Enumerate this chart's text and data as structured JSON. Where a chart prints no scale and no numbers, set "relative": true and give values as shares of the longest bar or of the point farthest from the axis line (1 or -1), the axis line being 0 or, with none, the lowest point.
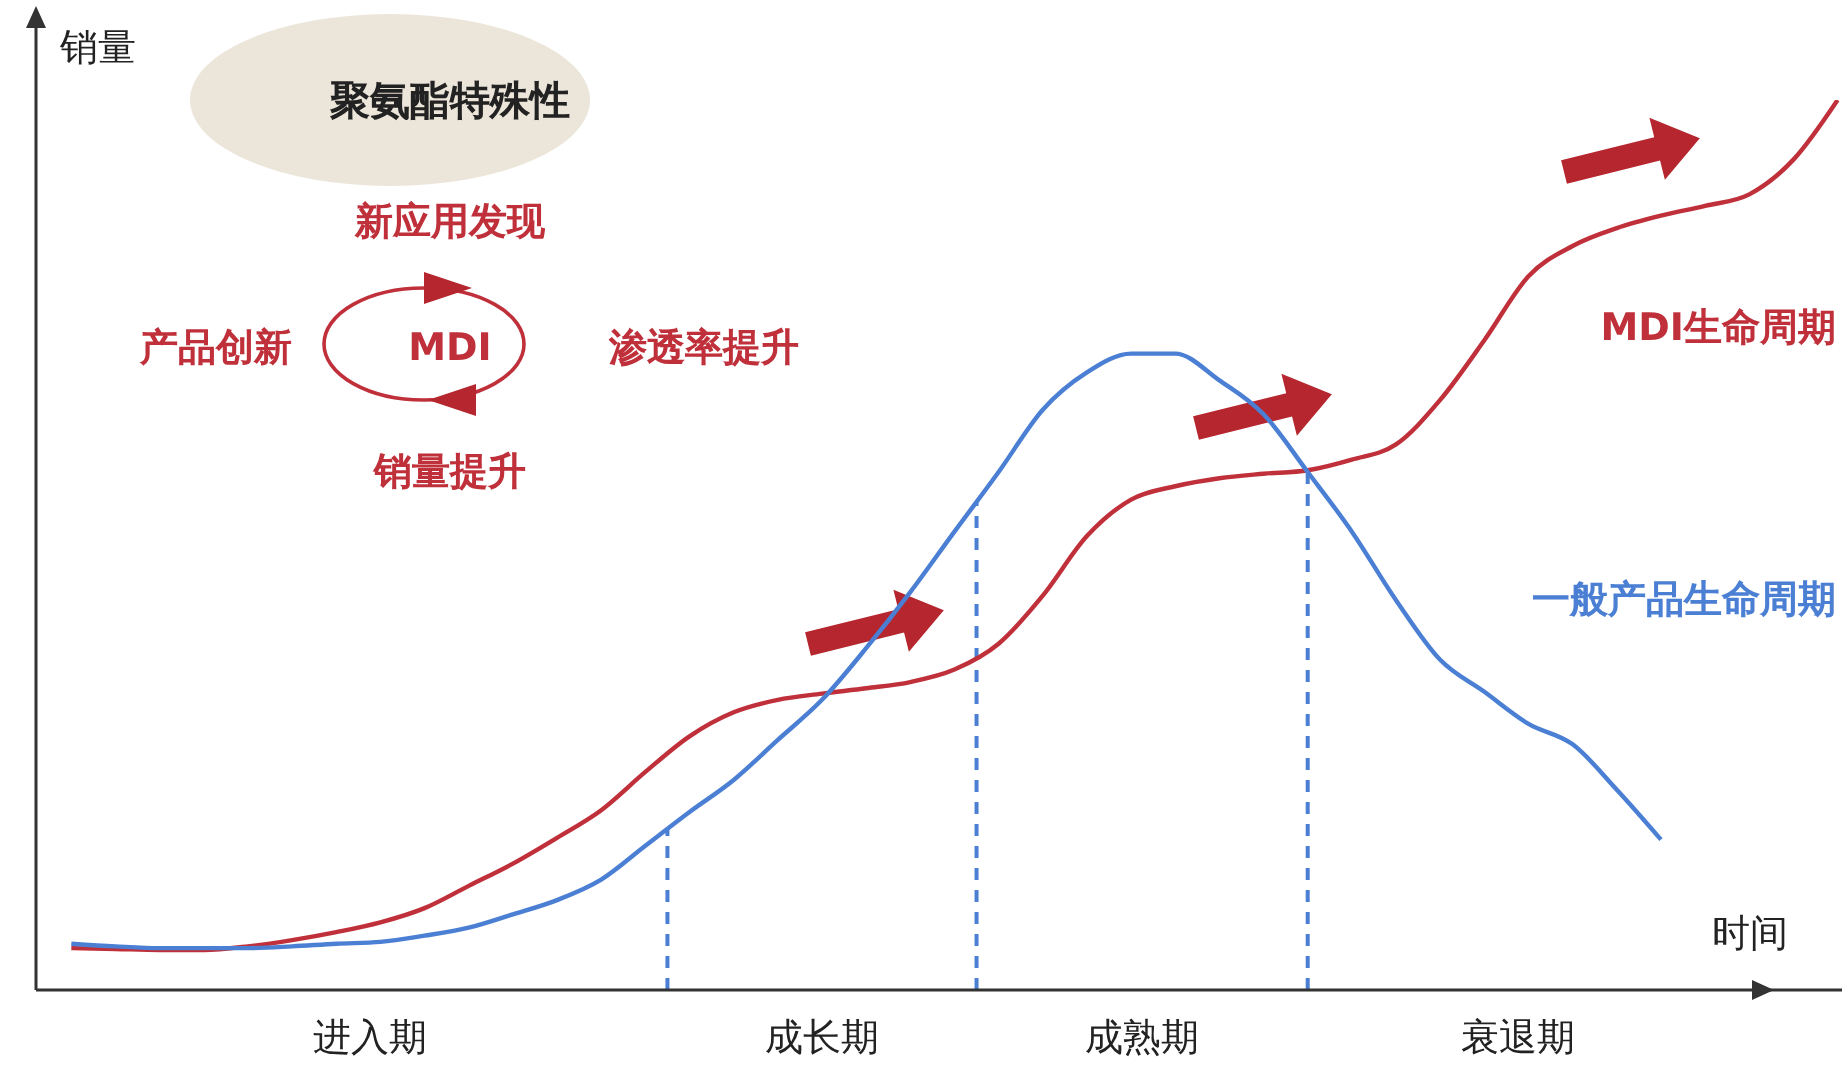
{
  "chart_data": {
    "type": "line",
    "relative": true,
    "ylabel": "销量",
    "xlabel": "时间",
    "categories": [
      null,
      null,
      null,
      null,
      null,
      null,
      null,
      null,
      null,
      null,
      null,
      null,
      null,
      null,
      null,
      null,
      null,
      null,
      null,
      null,
      null,
      null,
      null,
      null,
      null,
      null,
      null,
      null,
      null,
      null,
      null,
      null,
      null,
      null,
      null,
      null,
      null,
      null,
      null,
      null,
      null
    ],
    "series": [
      {
        "name": "MDI生命周期",
        "color": "#c0303a",
        "values": [
          0.047,
          0.046,
          0.045,
          0.045,
          0.049,
          0.056,
          0.065,
          0.076,
          0.092,
          0.117,
          0.142,
          0.171,
          0.202,
          0.245,
          0.285,
          0.312,
          0.326,
          0.333,
          0.339,
          0.346,
          0.36,
          0.389,
          0.443,
          0.51,
          0.551,
          0.566,
          0.575,
          0.58,
          0.584,
          0.596,
          0.613,
          0.663,
          0.73,
          0.802,
          0.836,
          0.856,
          0.87,
          0.881,
          0.894,
          0.933,
          1
        ]
      },
      {
        "name": "一般产品生命周期",
        "color": "#4a7fd4",
        "values": [
          0.052,
          0.049,
          0.047,
          0.047,
          0.047,
          0.049,
          0.052,
          0.054,
          0.061,
          0.07,
          0.085,
          0.101,
          0.124,
          0.162,
          0.2,
          0.236,
          0.281,
          0.326,
          0.384,
          0.447,
          0.515,
          0.582,
          0.652,
          0.694,
          0.715,
          0.715,
          0.685,
          0.647,
          0.582,
          0.515,
          0.438,
          0.371,
          0.335,
          0.299,
          0.276,
          0.225,
          0.169,
          null,
          null,
          null,
          null
        ]
      }
    ],
    "annotations": [
      "聚氨酯特殊性",
      "新应用发现",
      "产品创新",
      "MDI",
      "渗透率提升",
      "销量提升",
      "进入期",
      "成长期",
      "成熟期",
      "衰退期"
    ],
    "grid": false,
    "legend": false
  }
}
